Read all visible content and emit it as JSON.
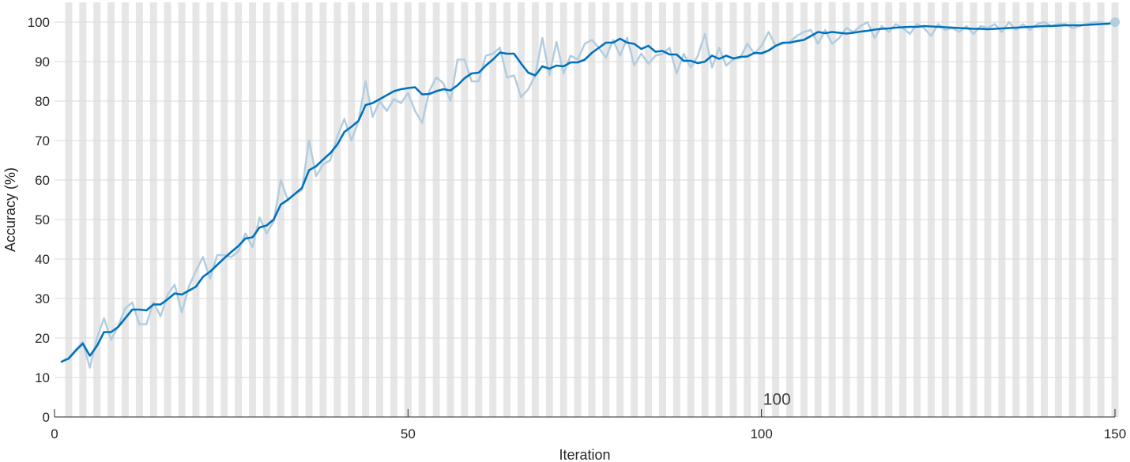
{
  "chart_data": {
    "type": "line",
    "xlabel": "Iteration",
    "ylabel": "Accuracy (%)",
    "xlim": [
      0,
      150
    ],
    "ylim": [
      0,
      105
    ],
    "xticks": [
      0,
      50,
      100,
      150
    ],
    "yticks": [
      0,
      10,
      20,
      30,
      40,
      50,
      60,
      70,
      80,
      90,
      100
    ],
    "grid": "horizontal",
    "background": "alternating gray vertical bands per iteration",
    "annotations": [
      {
        "text": "100",
        "x": 100,
        "y": 4.5
      }
    ],
    "colors": {
      "raw": "#b3cde0",
      "smoothed": "#0072bd",
      "band": "#e6e6e6",
      "grid": "#d9d9d9",
      "axis": "#262626"
    },
    "series": [
      {
        "role": "raw",
        "x": [
          1,
          2,
          3,
          4,
          5,
          6,
          7,
          8,
          9,
          10,
          11,
          12,
          13,
          14,
          15,
          16,
          17,
          18,
          19,
          20,
          21,
          22,
          23,
          24,
          25,
          26,
          27,
          28,
          29,
          30,
          31,
          32,
          33,
          34,
          35,
          36,
          37,
          38,
          39,
          40,
          41,
          42,
          43,
          44,
          45,
          46,
          47,
          48,
          49,
          50,
          51,
          52,
          53,
          54,
          55,
          56,
          57,
          58,
          59,
          60,
          61,
          62,
          63,
          64,
          65,
          66,
          67,
          68,
          69,
          70,
          71,
          72,
          73,
          74,
          75,
          76,
          77,
          78,
          79,
          80,
          81,
          82,
          83,
          84,
          85,
          86,
          87,
          88,
          89,
          90,
          91,
          92,
          93,
          94,
          95,
          96,
          97,
          98,
          99,
          100,
          101,
          102,
          103,
          104,
          105,
          106,
          107,
          108,
          109,
          110,
          111,
          112,
          113,
          114,
          115,
          116,
          117,
          118,
          119,
          120,
          121,
          122,
          123,
          124,
          125,
          126,
          127,
          128,
          129,
          130,
          131,
          132,
          133,
          134,
          135,
          136,
          137,
          138,
          139,
          140,
          141,
          142,
          143,
          144,
          145,
          146,
          147,
          148,
          149,
          150
        ],
        "values": [
          14,
          15,
          17,
          19,
          12.5,
          20,
          25,
          19.5,
          23,
          27.5,
          29,
          23.5,
          23.5,
          29,
          25.5,
          31,
          33.5,
          26.5,
          33,
          37,
          40.5,
          35,
          41,
          41,
          40.5,
          42,
          46.5,
          43,
          50.5,
          46.5,
          49.5,
          60,
          55,
          56.5,
          57.5,
          70,
          61,
          64,
          65,
          71,
          75.5,
          70,
          75,
          85,
          76,
          80,
          77.5,
          80.5,
          79.5,
          82,
          77.5,
          74.5,
          82.5,
          86,
          84.5,
          80,
          90.5,
          90.5,
          85,
          85,
          91.5,
          92,
          93.5,
          86,
          86.5,
          81,
          83,
          86.5,
          96,
          86.5,
          95,
          87,
          91.5,
          90.5,
          94.5,
          95.5,
          93.5,
          91,
          95.5,
          91.5,
          96,
          89,
          92,
          89.5,
          91.5,
          92,
          93.5,
          87,
          92,
          88.5,
          91.5,
          97,
          88.5,
          93.5,
          89,
          90.5,
          91,
          94.5,
          92,
          94,
          97.5,
          94,
          94.5,
          95,
          96.5,
          97.5,
          98,
          94.5,
          98,
          94.5,
          96,
          98.5,
          97.5,
          99,
          100,
          96,
          99,
          97.5,
          99.5,
          98.5,
          97,
          99.5,
          98.5,
          96.5,
          99.5,
          98,
          98.5,
          97.5,
          99,
          97,
          99,
          98.5,
          99.5,
          97.5,
          100,
          98,
          99.5,
          98,
          99.5,
          100,
          99,
          99.5,
          99.5,
          98.5,
          99,
          99.5,
          100,
          100,
          99.5,
          100
        ]
      },
      {
        "role": "smoothed",
        "x": [
          1,
          2,
          3,
          4,
          5,
          6,
          7,
          8,
          9,
          10,
          11,
          12,
          13,
          14,
          15,
          16,
          17,
          18,
          19,
          20,
          21,
          22,
          23,
          24,
          25,
          26,
          27,
          28,
          29,
          30,
          31,
          32,
          33,
          34,
          35,
          36,
          37,
          38,
          39,
          40,
          41,
          42,
          43,
          44,
          45,
          46,
          47,
          48,
          49,
          50,
          51,
          52,
          53,
          54,
          55,
          56,
          57,
          58,
          59,
          60,
          61,
          62,
          63,
          64,
          65,
          66,
          67,
          68,
          69,
          70,
          71,
          72,
          73,
          74,
          75,
          76,
          77,
          78,
          79,
          80,
          81,
          82,
          83,
          84,
          85,
          86,
          87,
          88,
          89,
          90,
          91,
          92,
          93,
          94,
          95,
          96,
          97,
          98,
          99,
          100,
          101,
          102,
          103,
          104,
          105,
          106,
          107,
          108,
          109,
          110,
          111,
          112,
          113,
          114,
          115,
          116,
          117,
          118,
          119,
          120,
          121,
          122,
          123,
          124,
          125,
          126,
          127,
          128,
          129,
          130,
          131,
          132,
          133,
          134,
          135,
          136,
          137,
          138,
          139,
          140,
          141,
          142,
          143,
          144,
          145,
          146,
          147,
          148,
          149,
          150
        ],
        "values": [
          14,
          14.8,
          16.8,
          18.6,
          15.5,
          18,
          21.5,
          21.5,
          22.8,
          25,
          27.2,
          27.2,
          27,
          28.5,
          28.5,
          29.8,
          31.3,
          31,
          32,
          33,
          35.5,
          36.8,
          38.5,
          40.2,
          41.8,
          43.3,
          45.2,
          45.5,
          48,
          48.5,
          50,
          53.8,
          55,
          56.5,
          58,
          62.5,
          63.5,
          65.2,
          66.8,
          69,
          72.2,
          73.5,
          75,
          79,
          79.5,
          80.5,
          81.5,
          82.5,
          83,
          83.3,
          83.5,
          81.7,
          81.8,
          82.5,
          83,
          82.7,
          84,
          85.8,
          87,
          87.2,
          89,
          90.5,
          92.3,
          92,
          92,
          89.5,
          87.2,
          86.5,
          88.8,
          88.2,
          89,
          88.8,
          89.8,
          89.8,
          90.5,
          92.2,
          93.5,
          94.8,
          94.8,
          95.8,
          94.8,
          94.5,
          93.2,
          94,
          92.5,
          92.7,
          91.8,
          91.8,
          90.2,
          90.2,
          89.6,
          90,
          91.5,
          90.7,
          91.5,
          90.8,
          91.2,
          91.3,
          92.2,
          92.1,
          92.8,
          94,
          94.8,
          94.8,
          95.2,
          95.5,
          96.5,
          97.5,
          97.2,
          97.5,
          97.3,
          97.1,
          97.3,
          97.6,
          97.8,
          98.1,
          98.3,
          98.4,
          98.6,
          98.7,
          98.8,
          98.8,
          99,
          98.9,
          98.8,
          98.7,
          98.6,
          98.5,
          98.4,
          98.3,
          98.3,
          98.2,
          98.3,
          98.4,
          98.5,
          98.6,
          98.7,
          98.8,
          98.9,
          99,
          99,
          99.1,
          99.2,
          99.2,
          99.2,
          99.3,
          99.4,
          99.5,
          99.6,
          99.8
        ]
      }
    ],
    "final_marker": {
      "x": 150,
      "y": 100
    }
  }
}
